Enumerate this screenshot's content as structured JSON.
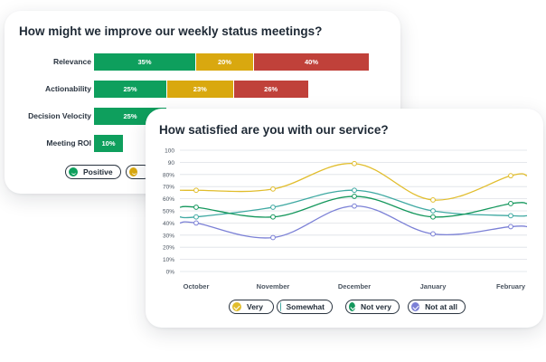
{
  "chart_data": [
    {
      "type": "bar",
      "stacked": true,
      "orientation": "horizontal",
      "title": "How might we improve our weekly status meetings?",
      "categories": [
        "Relevance",
        "Actionability",
        "Decision Velocity",
        "Meeting ROI"
      ],
      "series": [
        {
          "name": "Positive",
          "color": "#0e9f5d",
          "values": [
            35,
            25,
            25,
            10
          ]
        },
        {
          "color": "#d9a80f",
          "values": [
            20,
            23,
            null,
            null
          ]
        },
        {
          "color": "#c0413a",
          "values": [
            40,
            26,
            null,
            null
          ]
        }
      ],
      "data_labels": [
        [
          "35%",
          "20%",
          "40%"
        ],
        [
          "25%",
          "23%",
          "26%"
        ],
        [
          "25%"
        ],
        [
          "10%"
        ]
      ],
      "legend": [
        "Positive"
      ]
    },
    {
      "type": "line",
      "title": "How satisfied are you with our service?",
      "categories": [
        "October",
        "November",
        "December",
        "January",
        "February"
      ],
      "y_ticks": [
        "0%",
        "10%",
        "20%",
        "30%",
        "40%",
        "50%",
        "60%",
        "70%",
        "80%",
        "90%",
        "100%"
      ],
      "y_tick_labels_visible": [
        "0%",
        "10%",
        "20%",
        "30%",
        "40%",
        "50%",
        "60%",
        "70%",
        "80%",
        "90",
        "100"
      ],
      "ylim": [
        0,
        100
      ],
      "grid": true,
      "legend_position": "bottom",
      "series": [
        {
          "name": "Very",
          "color": "#e1bd2c",
          "values": [
            67,
            68,
            89,
            59,
            79
          ]
        },
        {
          "name": "Somewhat",
          "color": "#3fa9a2",
          "values": [
            45,
            53,
            67,
            50,
            46
          ]
        },
        {
          "name": "Not very",
          "color": "#14975c",
          "values": [
            53,
            45,
            62,
            45,
            56
          ]
        },
        {
          "name": "Not at all",
          "color": "#7b80d6",
          "values": [
            40,
            28,
            54,
            31,
            37
          ]
        }
      ]
    }
  ]
}
